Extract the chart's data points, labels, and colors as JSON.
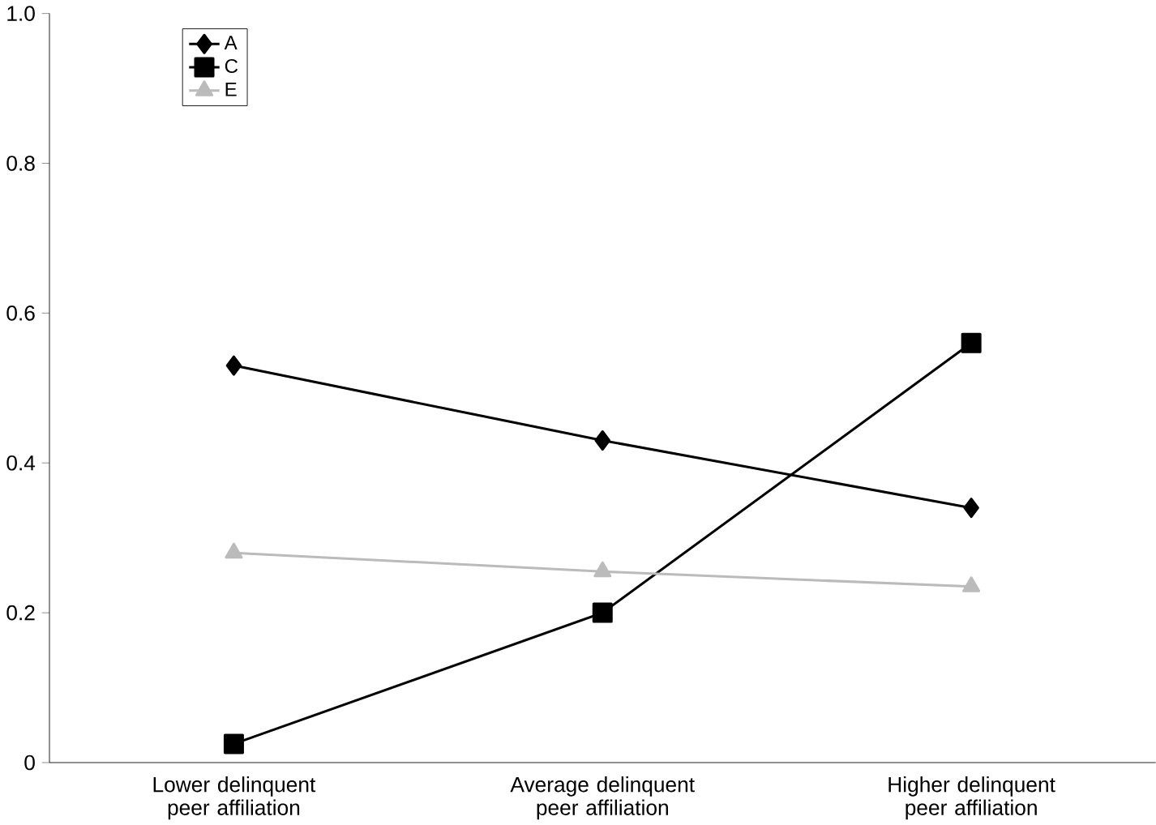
{
  "chart_data": {
    "type": "line",
    "categories": [
      "Lower delinquent peer affiliation",
      "Average delinquent peer affiliation",
      "Higher delinquent peer affiliation"
    ],
    "series": [
      {
        "name": "A",
        "color": "#000000",
        "marker": "diamond",
        "values": [
          0.53,
          0.43,
          0.34
        ]
      },
      {
        "name": "C",
        "color": "#000000",
        "marker": "square",
        "values": [
          0.025,
          0.2,
          0.56
        ]
      },
      {
        "name": "E",
        "color": "#bbbbbb",
        "marker": "triangle",
        "values": [
          0.28,
          0.255,
          0.235
        ]
      }
    ],
    "ylim": [
      0,
      1.0
    ],
    "yticks": [
      {
        "value": 0,
        "label": "0"
      },
      {
        "value": 0.2,
        "label": "0.2"
      },
      {
        "value": 0.4,
        "label": "0.4"
      },
      {
        "value": 0.6,
        "label": "0.6"
      },
      {
        "value": 0.8,
        "label": "0.8"
      },
      {
        "value": 1.0,
        "label": "1.0"
      }
    ],
    "grid": false,
    "legend": "top left",
    "line_style": "solid"
  }
}
